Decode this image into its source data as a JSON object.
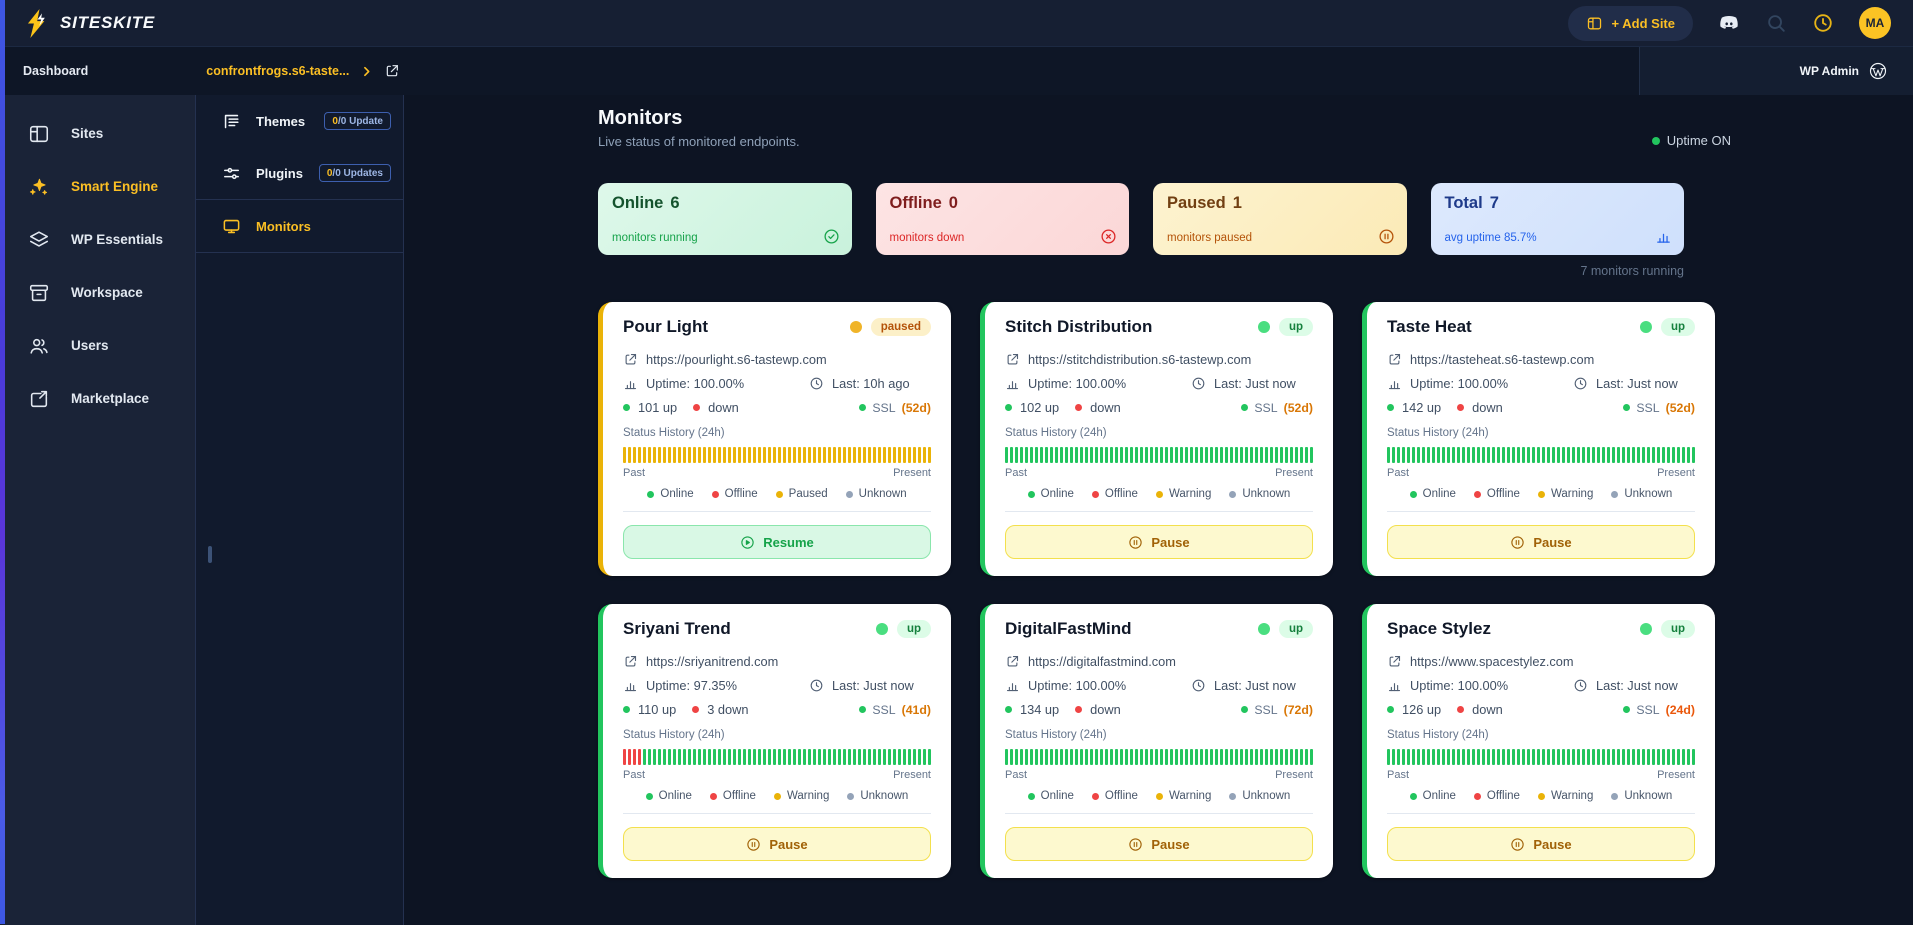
{
  "brand": {
    "name": "SITESKITE"
  },
  "topbar": {
    "add_site_label": "+ Add Site",
    "avatar_initials": "MA",
    "icons": [
      "add-site-layout-icon",
      "discord-icon",
      "search-icon",
      "history-clock-icon"
    ]
  },
  "breadcrumbbar": {
    "page": "Dashboard",
    "site": "confrontfrogs.s6-taste...",
    "wp_admin_label": "WP Admin"
  },
  "sidebar": {
    "items": [
      {
        "id": "sites",
        "label": "Sites",
        "icon": "sites-icon",
        "active": false
      },
      {
        "id": "smart-engine",
        "label": "Smart Engine",
        "icon": "sparkles-icon",
        "active": true
      },
      {
        "id": "wp-essentials",
        "label": "WP Essentials",
        "icon": "layers-icon",
        "active": false
      },
      {
        "id": "workspace",
        "label": "Workspace",
        "icon": "workspace-box-icon",
        "active": false
      },
      {
        "id": "users",
        "label": "Users",
        "icon": "users-icon",
        "active": false
      },
      {
        "id": "marketplace",
        "label": "Marketplace",
        "icon": "marketplace-icon",
        "active": false
      }
    ]
  },
  "submenu": {
    "items": [
      {
        "id": "themes",
        "label": "Themes",
        "icon": "themes-icon",
        "badge": {
          "count": "0",
          "rest": "/0 Update"
        },
        "active": false,
        "group": 1
      },
      {
        "id": "plugins",
        "label": "Plugins",
        "icon": "plugins-icon",
        "badge": {
          "count": "0",
          "rest": "/0 Updates"
        },
        "active": false,
        "group": 1
      },
      {
        "id": "monitors",
        "label": "Monitors",
        "icon": "monitor-icon",
        "badge": null,
        "active": true,
        "group": 2
      }
    ]
  },
  "page": {
    "title": "Monitors",
    "subtitle": "Live status of monitored endpoints.",
    "uptime_toggle_label": "Uptime ON",
    "running_note": "7 monitors running"
  },
  "stats": [
    {
      "id": "online",
      "label": "Online",
      "value": "6",
      "caption": "monitors running",
      "icon": "check-circle-icon",
      "theme": "green"
    },
    {
      "id": "offline",
      "label": "Offline",
      "value": "0",
      "caption": "monitors down",
      "icon": "x-circle-icon",
      "theme": "red"
    },
    {
      "id": "paused",
      "label": "Paused",
      "value": "1",
      "caption": "monitors paused",
      "icon": "pause-circle-icon",
      "theme": "yellow"
    },
    {
      "id": "total",
      "label": "Total",
      "value": "7",
      "caption": "avg uptime 85.7%",
      "icon": "bar-chart-icon",
      "theme": "blue"
    }
  ],
  "monitor_common": {
    "history_label": "Status History (24h)",
    "past": "Past",
    "present": "Present",
    "legend_colors": {
      "Online": "#22c55e",
      "Offline": "#ef4444",
      "Paused": "#eab308",
      "Warning": "#eab308",
      "Unknown": "#94a3b8"
    }
  },
  "monitors": [
    {
      "name": "Pour Light",
      "status": "paused",
      "badge": "paused",
      "url": "https://pourlight.s6-tastewp.com",
      "uptime": "Uptime: 100.00%",
      "last": "Last: 10h ago",
      "up": "101 up",
      "down": "down",
      "ssl_label": "SSL",
      "ssl_days": "(52d)",
      "ssl_tone": "amber",
      "legend": [
        "Online",
        "Offline",
        "Paused",
        "Unknown"
      ],
      "action": "Resume",
      "action_kind": "resume",
      "action_icon": "play-circle-icon",
      "history": [
        {
          "color": "#eab308",
          "count": 62
        }
      ]
    },
    {
      "name": "Stitch Distribution",
      "status": "up",
      "badge": "up",
      "url": "https://stitchdistribution.s6-tastewp.com",
      "uptime": "Uptime: 100.00%",
      "last": "Last: Just now",
      "up": "102 up",
      "down": "down",
      "ssl_label": "SSL",
      "ssl_days": "(52d)",
      "ssl_tone": "amber",
      "legend": [
        "Online",
        "Offline",
        "Warning",
        "Unknown"
      ],
      "action": "Pause",
      "action_kind": "pause",
      "action_icon": "pause-circle-icon",
      "history": [
        {
          "color": "#22c55e",
          "count": 62
        }
      ]
    },
    {
      "name": "Taste Heat",
      "status": "up",
      "badge": "up",
      "url": "https://tasteheat.s6-tastewp.com",
      "uptime": "Uptime: 100.00%",
      "last": "Last: Just now",
      "up": "142 up",
      "down": "down",
      "ssl_label": "SSL",
      "ssl_days": "(52d)",
      "ssl_tone": "amber",
      "legend": [
        "Online",
        "Offline",
        "Warning",
        "Unknown"
      ],
      "action": "Pause",
      "action_kind": "pause",
      "action_icon": "pause-circle-icon",
      "history": [
        {
          "color": "#22c55e",
          "count": 62
        }
      ]
    },
    {
      "name": "Sriyani Trend",
      "status": "up",
      "badge": "up",
      "url": "https://sriyanitrend.com",
      "uptime": "Uptime: 97.35%",
      "last": "Last: Just now",
      "up": "110 up",
      "down": "3 down",
      "ssl_label": "SSL",
      "ssl_days": "(41d)",
      "ssl_tone": "amber",
      "legend": [
        "Online",
        "Offline",
        "Warning",
        "Unknown"
      ],
      "action": "Pause",
      "action_kind": "pause",
      "action_icon": "pause-circle-icon",
      "history": [
        {
          "color": "#ef4444",
          "count": 4
        },
        {
          "color": "#22c55e",
          "count": 58
        }
      ]
    },
    {
      "name": "DigitalFastMind",
      "status": "up",
      "badge": "up",
      "url": "https://digitalfastmind.com",
      "uptime": "Uptime: 100.00%",
      "last": "Last: Just now",
      "up": "134 up",
      "down": "down",
      "ssl_label": "SSL",
      "ssl_days": "(72d)",
      "ssl_tone": "amber",
      "legend": [
        "Online",
        "Offline",
        "Warning",
        "Unknown"
      ],
      "action": "Pause",
      "action_kind": "pause",
      "action_icon": "pause-circle-icon",
      "history": [
        {
          "color": "#22c55e",
          "count": 62
        }
      ]
    },
    {
      "name": "Space Stylez",
      "status": "up",
      "badge": "up",
      "url": "https://www.spacestylez.com",
      "uptime": "Uptime: 100.00%",
      "last": "Last: Just now",
      "up": "126 up",
      "down": "down",
      "ssl_label": "SSL",
      "ssl_days": "(24d)",
      "ssl_tone": "orange",
      "legend": [
        "Online",
        "Offline",
        "Warning",
        "Unknown"
      ],
      "action": "Pause",
      "action_kind": "pause",
      "action_icon": "pause-circle-icon",
      "history": [
        {
          "color": "#22c55e",
          "count": 62
        }
      ]
    }
  ],
  "colors": {
    "accent_yellow": "#fbbf24",
    "online_green": "#22c55e",
    "offline_red": "#ef4444",
    "paused_yellow": "#eab308",
    "unknown_gray": "#94a3b8",
    "total_blue": "#2563eb"
  }
}
